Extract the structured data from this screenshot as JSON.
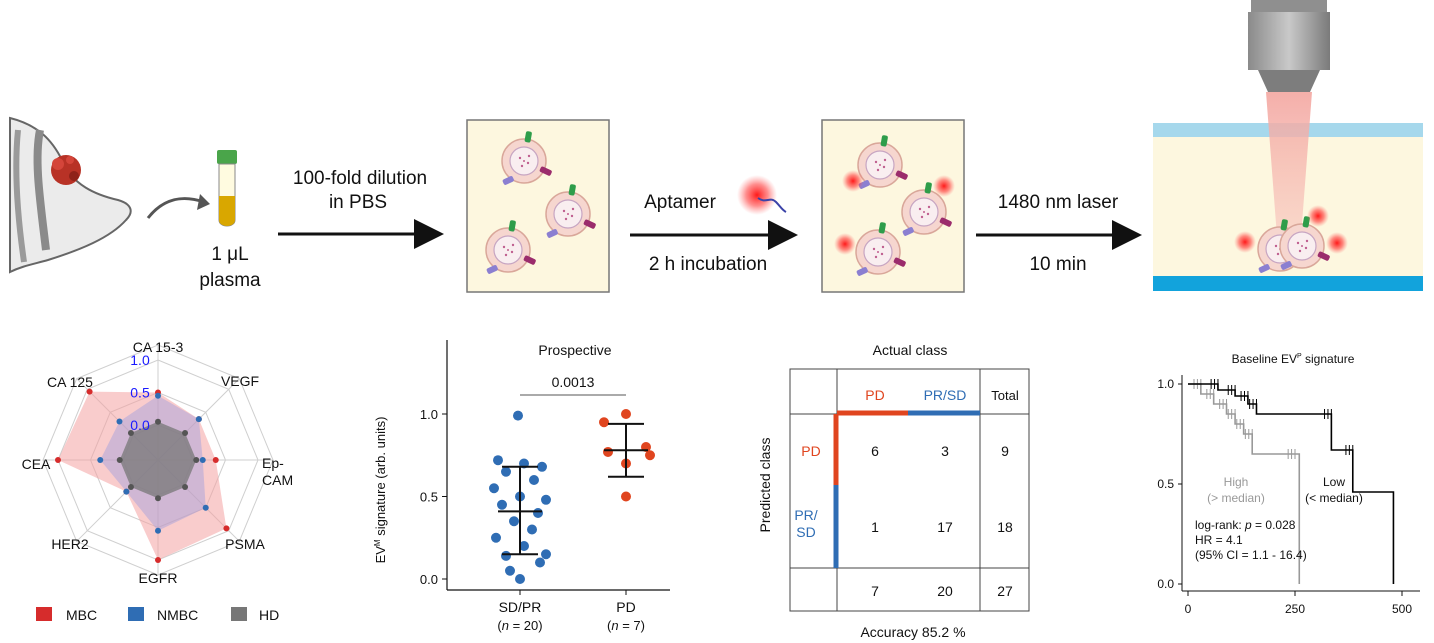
{
  "workflow": {
    "sample_volume": "1 μL",
    "sample_name": "plasma",
    "step1_line1": "100-fold dilution",
    "step1_line2": "in PBS",
    "step2_top": "Aptamer",
    "step2_bottom": "2 h incubation",
    "step3_top": "1480 nm laser",
    "step3_bottom": "10 min"
  },
  "radar": {
    "axes": [
      "CA 15-3",
      "VEGF",
      "Ep-CAM",
      "PSMA",
      "EGFR",
      "HER2",
      "CEA",
      "CA 125"
    ],
    "ep_line1": "Ep-",
    "ep_line2": "CAM",
    "rings": [
      "1.0",
      "0.5",
      "0.0"
    ],
    "legend": [
      {
        "label": "MBC",
        "color": "#d62c2c"
      },
      {
        "label": "NMBC",
        "color": "#2f6db4"
      },
      {
        "label": "HD",
        "color": "#777777"
      }
    ],
    "chart_data": {
      "type": "radar",
      "axes": [
        "CA 15-3",
        "VEGF",
        "Ep-CAM",
        "PSMA",
        "EGFR",
        "HER2",
        "CEA",
        "CA 125"
      ],
      "ticks": [
        0.0,
        0.5,
        1.0
      ],
      "series": [
        {
          "name": "MBC",
          "values": [
            0.5,
            0.35,
            0.35,
            0.95,
            1.0,
            0.15,
            1.0,
            0.95
          ]
        },
        {
          "name": "NMBC",
          "values": [
            0.45,
            0.35,
            0.15,
            0.5,
            0.55,
            0.15,
            0.35,
            0.3
          ]
        },
        {
          "name": "HD",
          "values": [
            0.05,
            0.05,
            0.05,
            0.05,
            0.05,
            0.05,
            0.05,
            0.05
          ]
        }
      ]
    }
  },
  "scatter": {
    "title": "Prospective",
    "ylabel_main": "EV",
    "ylabel_sup": "M",
    "ylabel_rest": " signature (arb. units)",
    "pvalue": "0.0013",
    "yticks": [
      "0.0",
      "0.5",
      "1.0"
    ],
    "groups": [
      {
        "label": "SD/PR",
        "n_prefix": "(",
        "n_var": "n",
        "n_suffix": " = 20)"
      },
      {
        "label": "PD",
        "n_prefix": "(",
        "n_var": "n",
        "n_suffix": " = 7)"
      }
    ],
    "chart_data": {
      "type": "scatter",
      "categories": [
        "SD/PR",
        "PD"
      ],
      "ylim": [
        0,
        1.1
      ],
      "series": [
        {
          "name": "SD/PR",
          "color": "#2f6db4",
          "values": [
            0.99,
            0.72,
            0.7,
            0.68,
            0.65,
            0.6,
            0.55,
            0.5,
            0.48,
            0.45,
            0.4,
            0.35,
            0.3,
            0.25,
            0.2,
            0.15,
            0.14,
            0.1,
            0.05,
            0.0
          ],
          "mean": 0.41,
          "sd_low": 0.15,
          "sd_high": 0.68
        },
        {
          "name": "PD",
          "color": "#e0451f",
          "values": [
            1.0,
            0.95,
            0.8,
            0.77,
            0.75,
            0.7,
            0.5
          ],
          "mean": 0.78,
          "sd_low": 0.62,
          "sd_high": 0.94
        }
      ]
    }
  },
  "confusion": {
    "title": "Actual class",
    "row_axis": "Predicted class",
    "cols": [
      "PD",
      "PR/SD",
      "Total"
    ],
    "rows": [
      "PD",
      "PR/",
      "SD"
    ],
    "cells": [
      [
        "6",
        "3",
        "9"
      ],
      [
        "1",
        "17",
        "18"
      ],
      [
        "7",
        "20",
        "27"
      ]
    ],
    "accuracy": "Accuracy 85.2 %",
    "colors": {
      "pd": "#e0451f",
      "prsd": "#2f6db4"
    }
  },
  "km": {
    "title_main": "Baseline EV",
    "title_sup": "P",
    "title_rest": " signature",
    "yticks": [
      "1.0",
      "0.5",
      "0.0"
    ],
    "xticks": [
      "0",
      "250",
      "500"
    ],
    "high_line1": "High",
    "high_line2": "(> median)",
    "low_line1": "Low",
    "low_line2": "(< median)",
    "stat_prefix": "log-rank: ",
    "stat_var": "p",
    "stat_value": " = 0.028",
    "hr": "HR = 4.1",
    "ci": "(95% CI = 1.1 - 16.4)",
    "chart_data": {
      "type": "line",
      "xlim": [
        0,
        520
      ],
      "ylim": [
        0,
        1.05
      ],
      "series": [
        {
          "name": "Low",
          "color": "#000000",
          "x": [
            0,
            70,
            110,
            140,
            160,
            335,
            385,
            480
          ],
          "y": [
            1.0,
            0.97,
            0.94,
            0.9,
            0.85,
            0.67,
            0.46,
            0.0
          ]
        },
        {
          "name": "High",
          "color": "#999999",
          "x": [
            0,
            30,
            60,
            90,
            110,
            130,
            150,
            250,
            260
          ],
          "y": [
            1.0,
            0.95,
            0.9,
            0.85,
            0.8,
            0.75,
            0.65,
            0.65,
            0.0
          ]
        }
      ]
    }
  }
}
